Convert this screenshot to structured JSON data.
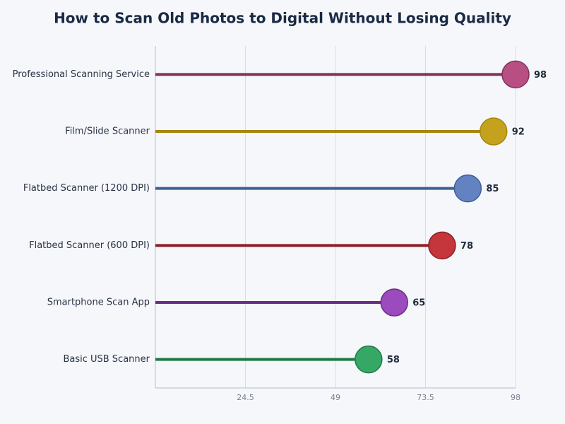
{
  "chart_data": {
    "type": "lollipop",
    "title": "How to Scan Old Photos to Digital Without Losing Quality",
    "categories": [
      "Professional Scanning Service",
      "Film/Slide Scanner",
      "Flatbed Scanner (1200 DPI)",
      "Flatbed Scanner (600 DPI)",
      "Smartphone Scan App",
      "Basic USB Scanner"
    ],
    "values": [
      98,
      92,
      85,
      78,
      65,
      58
    ],
    "colors": [
      "#b84f83",
      "#c4a21e",
      "#6382c2",
      "#c4363c",
      "#9b4bbd",
      "#36a865"
    ],
    "line_colors": [
      "#82305a",
      "#a8860f",
      "#3f5f94",
      "#8b1e25",
      "#6c2e85",
      "#1f7a45"
    ],
    "xlim": [
      0,
      98
    ],
    "xticks": [
      24.5,
      49,
      73.5,
      98
    ],
    "grid": true
  }
}
